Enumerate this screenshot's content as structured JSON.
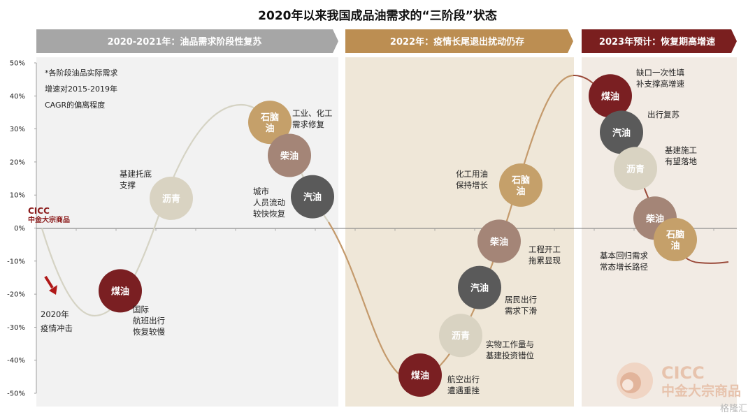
{
  "chart_data": {
    "type": "line",
    "title": "2020年以来我国成品油需求的“三阶段”状态",
    "ylim": [
      -50,
      50
    ],
    "yticks": [
      50,
      40,
      30,
      20,
      10,
      0,
      -10,
      -20,
      -30,
      -40,
      -50
    ],
    "ytick_labels": [
      "50%",
      "40%",
      "30%",
      "20%",
      "10%",
      "0%",
      "-10%",
      "-20%",
      "-30%",
      "-40%",
      "-50%"
    ],
    "note_lines": [
      "*各阶段油品实际需求",
      "增速对2015-2019年",
      "CAGR的偏离程度"
    ],
    "stages": [
      {
        "label": "2020-2021年：油品需求阶段性复苏",
        "color": "#a6a6a6",
        "bg": "#f2f2f2"
      },
      {
        "label": "2022年：疫情长尾退出扰动仍存",
        "color": "#bc8e52",
        "bg": "#efe7d8"
      },
      {
        "label": "2023年预计：恢复期高增速",
        "color": "#7a1f1f",
        "bg": "#f2ebe4"
      }
    ],
    "bubbles": [
      {
        "stage": 1,
        "lines": [
          "煤油"
        ],
        "y": -19,
        "color": "#7a1f22",
        "annotation": [
          "国际",
          "航班出行",
          "恢复较慢"
        ]
      },
      {
        "stage": 1,
        "lines": [
          "沥青"
        ],
        "y": 9,
        "color": "#d9d3c2",
        "annotation": [
          "基建托底",
          "支撑"
        ]
      },
      {
        "stage": 1,
        "lines": [
          "石脑",
          "油"
        ],
        "y": 32,
        "color": "#c5a06a",
        "annotation": [
          "工业、化工",
          "需求修复"
        ]
      },
      {
        "stage": 1,
        "lines": [
          "柴油"
        ],
        "y": 22,
        "color": "#a48577",
        "annotation": []
      },
      {
        "stage": 1,
        "lines": [
          "汽油"
        ],
        "y": 9.5,
        "color": "#5a5a5a",
        "annotation": [
          "城市",
          "人员流动",
          "较快恢复"
        ]
      },
      {
        "stage": 2,
        "lines": [
          "煤油"
        ],
        "y": -44.5,
        "color": "#7a1f22",
        "annotation": [
          "航空出行",
          "遭遇重挫"
        ]
      },
      {
        "stage": 2,
        "lines": [
          "沥青"
        ],
        "y": -32.5,
        "color": "#d9d3c2",
        "annotation": [
          "实物工作量与",
          "基建投资错位"
        ]
      },
      {
        "stage": 2,
        "lines": [
          "汽油"
        ],
        "y": -18,
        "color": "#5a5a5a",
        "annotation": [
          "居民出行",
          "需求下滑"
        ]
      },
      {
        "stage": 2,
        "lines": [
          "柴油"
        ],
        "y": -4,
        "color": "#a48577",
        "annotation": [
          "工程开工",
          "拖累显现"
        ]
      },
      {
        "stage": 2,
        "lines": [
          "石脑",
          "油"
        ],
        "y": 13,
        "color": "#c5a06a",
        "annotation": [
          "化工用油",
          "保持增长"
        ]
      },
      {
        "stage": 3,
        "lines": [
          "煤油"
        ],
        "y": 40,
        "color": "#7a1f22",
        "annotation": [
          "缺口一次性填",
          "补支撑高增速"
        ]
      },
      {
        "stage": 3,
        "lines": [
          "汽油"
        ],
        "y": 29,
        "color": "#5a5a5a",
        "annotation": [
          "出行复苏"
        ]
      },
      {
        "stage": 3,
        "lines": [
          "沥青"
        ],
        "y": 18,
        "color": "#d9d3c2",
        "annotation": [
          "基建施工",
          "有望落地"
        ]
      },
      {
        "stage": 3,
        "lines": [
          "柴油"
        ],
        "y": 3,
        "color": "#a48577",
        "annotation": []
      },
      {
        "stage": 3,
        "lines": [
          "石脑",
          "油"
        ],
        "y": -3.5,
        "color": "#c5a06a",
        "annotation": [
          "基本回归需求",
          "常态增长路径"
        ]
      }
    ],
    "start_annotation": [
      "2020年",
      "疫情冲击"
    ]
  },
  "source_logo": {
    "name": "CICC",
    "subtitle": "中金大宗商品"
  },
  "watermark": {
    "name": "CICC",
    "subtitle": "中金大宗商品",
    "site": "格隆汇"
  }
}
